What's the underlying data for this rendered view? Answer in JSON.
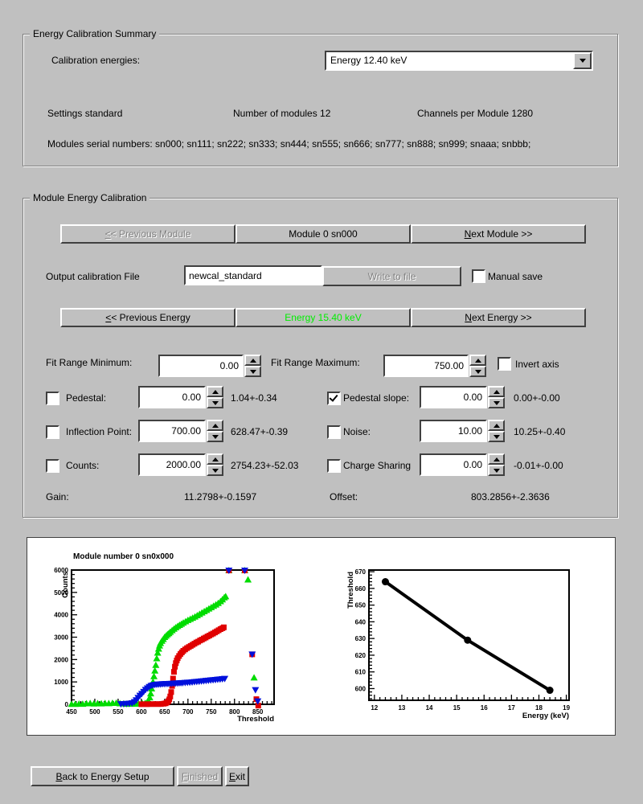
{
  "window": {
    "bg": "#c0c0c0"
  },
  "summary": {
    "title": "Energy Calibration Summary",
    "calibration_energies_label": "Calibration energies:",
    "energy_combo_value": "Energy 12.40 keV",
    "settings": "Settings standard",
    "num_modules": "Number of modules 12",
    "channels": "Channels per Module 1280",
    "serials": "Modules serial numbers: sn000; sn111; sn222; sn333; sn444; sn555; sn666; sn777; sn888; sn999; snaaa; snbbb;"
  },
  "module_cal": {
    "title": "Module Energy Calibration",
    "prev_module": {
      "text": "<< Previous Module",
      "u": 0
    },
    "module_label": "Module 0 sn000",
    "next_module": {
      "text": "Next Module >>",
      "u": 0
    },
    "output_file_label": "Output calibration File",
    "output_file_value": "newcal_standard",
    "write_to_file": "Write to file",
    "manual_save": "Manual save",
    "prev_energy": {
      "text": "<< Previous Energy",
      "u": 0
    },
    "energy_label": "Energy 15.40 keV",
    "energy_color": "#00ee00",
    "next_energy": {
      "text": "Next Energy >>",
      "u": 0
    },
    "fit_min_label": "Fit Range Minimum:",
    "fit_min_value": "0.00",
    "fit_max_label": "Fit Range Maximum:",
    "fit_max_value": "750.00",
    "invert_axis": "Invert axis",
    "params": [
      {
        "label": "Pedestal:",
        "checked": false,
        "value": "0.00",
        "result": "1.04+-0.34"
      },
      {
        "label": "Pedestal slope:",
        "checked": true,
        "value": "0.00",
        "result": "0.00+-0.00"
      },
      {
        "label": "Inflection Point:",
        "checked": false,
        "value": "700.00",
        "result": "628.47+-0.39"
      },
      {
        "label": "Noise:",
        "checked": false,
        "value": "10.00",
        "result": "10.25+-0.40"
      },
      {
        "label": "Counts:",
        "checked": false,
        "value": "2000.00",
        "result": "2754.23+-52.03"
      },
      {
        "label": "Charge Sharing",
        "checked": false,
        "value": "0.00",
        "result": "-0.01+-0.00"
      }
    ],
    "gain_label": "Gain:",
    "gain_value": "11.2798+-0.1597",
    "offset_label": "Offset:",
    "offset_value": "803.2856+-2.3636"
  },
  "footer": {
    "back": {
      "text": "Back to Energy Setup",
      "u": 0
    },
    "finished": {
      "text": "Finished",
      "u": 0
    },
    "exit": {
      "text": "Exit",
      "u": 0
    }
  },
  "chart_data": [
    {
      "type": "scatter",
      "title": "Module number 0 sn0x000",
      "xlabel": "Threshold",
      "ylabel": "Counts",
      "xlim": [
        450,
        885
      ],
      "ylim": [
        0,
        6000
      ],
      "xticks": {
        "major": 50,
        "minor": 10
      },
      "yticks": {
        "major": 1000,
        "minor": 200
      },
      "series": [
        {
          "name": "green-triangle-up-scan",
          "color": "#00dc00",
          "marker": "triangle-up",
          "points": [
            [
              450,
              10
            ],
            [
              458,
              8
            ],
            [
              466,
              18
            ],
            [
              474,
              12
            ],
            [
              482,
              35
            ],
            [
              490,
              45
            ],
            [
              498,
              25
            ],
            [
              506,
              40
            ],
            [
              514,
              30
            ],
            [
              522,
              45
            ],
            [
              530,
              40
            ],
            [
              538,
              55
            ],
            [
              546,
              60
            ],
            [
              554,
              35
            ],
            [
              562,
              25
            ],
            [
              570,
              15
            ],
            [
              578,
              12
            ],
            [
              586,
              18
            ],
            [
              594,
              25
            ],
            [
              602,
              35
            ],
            [
              608,
              45
            ],
            [
              612,
              80
            ],
            [
              615,
              150
            ],
            [
              618,
              300
            ],
            [
              620,
              480
            ],
            [
              622,
              700
            ],
            [
              625,
              1000
            ],
            [
              627,
              1250
            ],
            [
              629,
              1500
            ],
            [
              631,
              1750
            ],
            [
              633,
              2050
            ],
            [
              635,
              2300
            ],
            [
              637,
              2480
            ],
            [
              639,
              2620
            ],
            [
              641,
              2730
            ],
            [
              644,
              2830
            ],
            [
              647,
              2910
            ],
            [
              650,
              3000
            ],
            [
              653,
              3060
            ],
            [
              656,
              3120
            ],
            [
              659,
              3170
            ],
            [
              662,
              3230
            ],
            [
              666,
              3300
            ],
            [
              670,
              3370
            ],
            [
              674,
              3430
            ],
            [
              678,
              3490
            ],
            [
              682,
              3540
            ],
            [
              686,
              3590
            ],
            [
              690,
              3640
            ],
            [
              695,
              3700
            ],
            [
              700,
              3760
            ],
            [
              705,
              3810
            ],
            [
              710,
              3860
            ],
            [
              715,
              3910
            ],
            [
              720,
              3970
            ],
            [
              725,
              4030
            ],
            [
              730,
              4090
            ],
            [
              735,
              4150
            ],
            [
              740,
              4210
            ],
            [
              745,
              4270
            ],
            [
              750,
              4330
            ],
            [
              755,
              4390
            ],
            [
              760,
              4450
            ],
            [
              765,
              4520
            ],
            [
              770,
              4600
            ],
            [
              774,
              4680
            ],
            [
              778,
              4770
            ],
            [
              781,
              4820
            ],
            [
              788,
              5980
            ],
            [
              822,
              5980
            ],
            [
              829,
              5570
            ],
            [
              842,
              1190
            ]
          ]
        },
        {
          "name": "red-square-scan",
          "color": "#e00000",
          "marker": "square",
          "points": [
            [
              600,
              5
            ],
            [
              606,
              8
            ],
            [
              612,
              5
            ],
            [
              618,
              10
            ],
            [
              624,
              8
            ],
            [
              630,
              12
            ],
            [
              636,
              10
            ],
            [
              642,
              15
            ],
            [
              648,
              25
            ],
            [
              652,
              45
            ],
            [
              655,
              80
            ],
            [
              658,
              140
            ],
            [
              660,
              220
            ],
            [
              662,
              350
            ],
            [
              664,
              550
            ],
            [
              666,
              820
            ],
            [
              668,
              1150
            ],
            [
              670,
              1450
            ],
            [
              672,
              1680
            ],
            [
              674,
              1840
            ],
            [
              676,
              1960
            ],
            [
              678,
              2060
            ],
            [
              681,
              2160
            ],
            [
              684,
              2250
            ],
            [
              687,
              2320
            ],
            [
              690,
              2390
            ],
            [
              694,
              2450
            ],
            [
              698,
              2510
            ],
            [
              702,
              2560
            ],
            [
              706,
              2610
            ],
            [
              710,
              2660
            ],
            [
              714,
              2710
            ],
            [
              718,
              2760
            ],
            [
              722,
              2800
            ],
            [
              726,
              2850
            ],
            [
              730,
              2890
            ],
            [
              734,
              2940
            ],
            [
              738,
              2980
            ],
            [
              742,
              3030
            ],
            [
              746,
              3070
            ],
            [
              750,
              3120
            ],
            [
              754,
              3160
            ],
            [
              758,
              3210
            ],
            [
              762,
              3260
            ],
            [
              766,
              3310
            ],
            [
              770,
              3360
            ],
            [
              774,
              3400
            ],
            [
              777,
              3440
            ],
            [
              788,
              5980
            ],
            [
              822,
              5980
            ],
            [
              838,
              2230
            ],
            [
              847,
              230
            ],
            [
              851,
              -60
            ]
          ]
        },
        {
          "name": "blue-triangle-down-scan",
          "color": "#0010dc",
          "marker": "triangle-down",
          "points": [
            [
              556,
              15
            ],
            [
              562,
              20
            ],
            [
              568,
              25
            ],
            [
              574,
              35
            ],
            [
              580,
              55
            ],
            [
              585,
              110
            ],
            [
              589,
              190
            ],
            [
              593,
              290
            ],
            [
              597,
              390
            ],
            [
              601,
              470
            ],
            [
              605,
              560
            ],
            [
              609,
              650
            ],
            [
              613,
              720
            ],
            [
              617,
              780
            ],
            [
              621,
              830
            ],
            [
              625,
              855
            ],
            [
              629,
              875
            ],
            [
              633,
              885
            ],
            [
              637,
              895
            ],
            [
              641,
              900
            ],
            [
              645,
              905
            ],
            [
              649,
              910
            ],
            [
              653,
              915
            ],
            [
              657,
              918
            ],
            [
              661,
              922
            ],
            [
              665,
              927
            ],
            [
              669,
              932
            ],
            [
              673,
              937
            ],
            [
              677,
              943
            ],
            [
              681,
              948
            ],
            [
              685,
              953
            ],
            [
              689,
              958
            ],
            [
              694,
              965
            ],
            [
              699,
              973
            ],
            [
              704,
              981
            ],
            [
              709,
              990
            ],
            [
              714,
              1000
            ],
            [
              719,
              1010
            ],
            [
              724,
              1020
            ],
            [
              729,
              1032
            ],
            [
              734,
              1043
            ],
            [
              739,
              1054
            ],
            [
              744,
              1065
            ],
            [
              749,
              1076
            ],
            [
              754,
              1087
            ],
            [
              759,
              1098
            ],
            [
              764,
              1108
            ],
            [
              769,
              1120
            ],
            [
              774,
              1132
            ],
            [
              779,
              1145
            ],
            [
              788,
              5980
            ],
            [
              822,
              5980
            ],
            [
              838,
              2230
            ],
            [
              845,
              640
            ],
            [
              850,
              140
            ]
          ]
        }
      ]
    },
    {
      "type": "line",
      "title": "",
      "xlabel": "Energy (keV)",
      "ylabel": "Threshold",
      "xlim": [
        11.8,
        19.1
      ],
      "ylim": [
        593,
        671
      ],
      "xticks": {
        "major": 1,
        "minor": 0.2
      },
      "yticks": {
        "major": 10,
        "minor": 2
      },
      "series": [
        {
          "name": "threshold-vs-energy-fit",
          "color": "#000000",
          "marker": "circle",
          "line": true,
          "line_width": 4,
          "points": [
            [
              12.4,
              664
            ],
            [
              15.4,
              629
            ],
            [
              18.4,
              599
            ]
          ]
        }
      ]
    }
  ]
}
